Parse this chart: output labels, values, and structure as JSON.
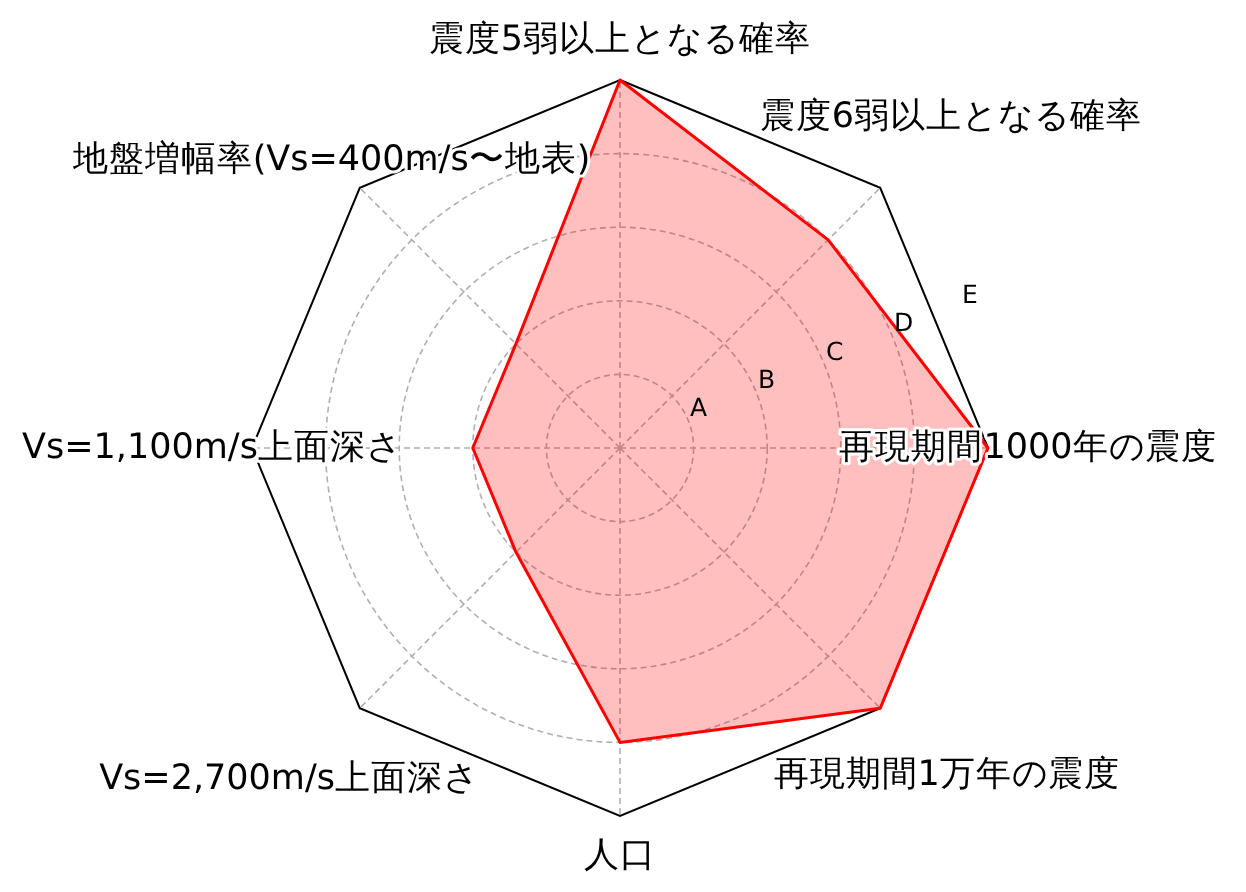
{
  "chart_data": {
    "type": "radar",
    "categories": [
      "震度5弱以上となる確率",
      "震度6弱以上となる確率",
      "再現期間1000年の震度",
      "再現期間1万年の震度",
      "人口",
      "Vs=2,700m/s上面深さ",
      "Vs=1,100m/s上面深さ",
      "地盤増幅率(Vs=400m/s〜地表)"
    ],
    "series": [
      {
        "color": "#ff0000",
        "values": [
          5,
          4,
          5,
          5,
          4,
          2,
          2,
          2
        ]
      }
    ],
    "ylim": [
      0,
      5
    ],
    "yticks": [
      {
        "value": 1,
        "label": "A"
      },
      {
        "value": 2,
        "label": "B"
      },
      {
        "value": 3,
        "label": "C"
      },
      {
        "value": 4,
        "label": "D"
      },
      {
        "value": 5,
        "label": "E"
      }
    ],
    "grid": true
  }
}
